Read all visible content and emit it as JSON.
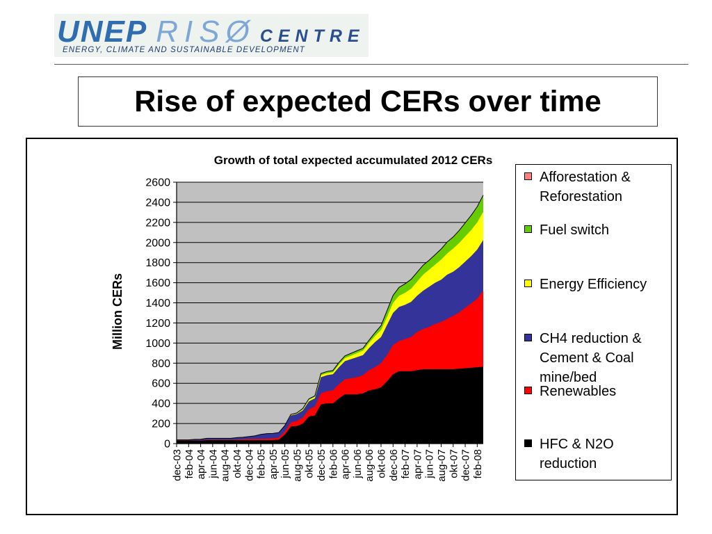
{
  "header": {
    "logo": {
      "word1": "UNEP",
      "word2": "RISØ",
      "word3": "CENTRE",
      "tagline": "ENERGY, CLIMATE AND SUSTAINABLE DEVELOPMENT"
    },
    "slide_title": "Rise of expected CERs over time"
  },
  "colors": {
    "plot_background": "#c0c0c0",
    "afforestation": "#ff8080",
    "fuel_switch": "#66cc00",
    "energy_efficiency": "#ffff00",
    "ch4": "#333399",
    "renewables": "#ff0000",
    "hfc": "#000000"
  },
  "chart_data": {
    "type": "area",
    "stacked": true,
    "title": "Growth of total expected accumulated 2012 CERs",
    "ylabel": "Million CERs",
    "xlabel": "",
    "ylim": [
      0,
      2600
    ],
    "yticks": [
      0,
      200,
      400,
      600,
      800,
      1000,
      1200,
      1400,
      1600,
      1800,
      2000,
      2200,
      2400,
      2600
    ],
    "grid": true,
    "legend_position": "right",
    "x_tick_labels": [
      "dec-03",
      "feb-04",
      "apr-04",
      "jun-04",
      "aug-04",
      "okt-04",
      "dec-04",
      "feb-05",
      "apr-05",
      "jun-05",
      "aug-05",
      "okt-05",
      "dec-05",
      "feb-06",
      "apr-06",
      "jun-06",
      "aug-06",
      "okt-06",
      "dec-06",
      "feb-07",
      "apr-07",
      "jun-07",
      "aug-07",
      "okt-07",
      "dec-07",
      "feb-08"
    ],
    "x": [
      "dec-03",
      "jan-04",
      "feb-04",
      "mar-04",
      "apr-04",
      "maj-04",
      "jun-04",
      "jul-04",
      "aug-04",
      "sep-04",
      "okt-04",
      "nov-04",
      "dec-04",
      "jan-05",
      "feb-05",
      "mar-05",
      "apr-05",
      "maj-05",
      "jun-05",
      "jul-05",
      "aug-05",
      "sep-05",
      "okt-05",
      "nov-05",
      "dec-05",
      "jan-06",
      "feb-06",
      "mar-06",
      "apr-06",
      "maj-06",
      "jun-06",
      "jul-06",
      "aug-06",
      "sep-06",
      "okt-06",
      "nov-06",
      "dec-06",
      "jan-07",
      "feb-07",
      "mar-07",
      "apr-07",
      "maj-07",
      "jun-07",
      "jul-07",
      "aug-07",
      "sep-07",
      "okt-07",
      "nov-07",
      "dec-07",
      "jan-08",
      "feb-08",
      "mar-08"
    ],
    "series": [
      {
        "name": "HFC & N2O reduction",
        "values": [
          30,
          30,
          30,
          30,
          30,
          35,
          35,
          35,
          35,
          35,
          35,
          35,
          35,
          35,
          35,
          35,
          35,
          40,
          90,
          170,
          175,
          200,
          270,
          280,
          390,
          400,
          400,
          450,
          490,
          490,
          490,
          500,
          530,
          540,
          560,
          620,
          690,
          720,
          720,
          720,
          730,
          740,
          740,
          740,
          740,
          740,
          740,
          745,
          750,
          755,
          760,
          765
        ]
      },
      {
        "name": "Renewables",
        "values": [
          2,
          2,
          2,
          2,
          3,
          3,
          3,
          3,
          3,
          3,
          5,
          8,
          10,
          12,
          12,
          14,
          16,
          20,
          30,
          40,
          50,
          60,
          70,
          90,
          110,
          120,
          130,
          140,
          150,
          160,
          170,
          180,
          200,
          220,
          240,
          260,
          290,
          300,
          320,
          340,
          380,
          400,
          420,
          450,
          470,
          500,
          530,
          560,
          600,
          640,
          680,
          760
        ]
      },
      {
        "name": "CH4 reduction & Cement & Coal mine/bed",
        "values": [
          5,
          5,
          5,
          10,
          10,
          15,
          15,
          15,
          15,
          15,
          20,
          20,
          25,
          30,
          45,
          50,
          50,
          50,
          60,
          70,
          70,
          70,
          80,
          80,
          160,
          160,
          160,
          170,
          180,
          190,
          200,
          200,
          220,
          250,
          260,
          300,
          320,
          340,
          340,
          350,
          360,
          380,
          400,
          410,
          420,
          440,
          440,
          450,
          460,
          470,
          490,
          500
        ]
      },
      {
        "name": "Energy Efficiency",
        "values": [
          0,
          0,
          0,
          0,
          0,
          0,
          0,
          0,
          0,
          0,
          0,
          0,
          0,
          0,
          0,
          0,
          0,
          0,
          0,
          5,
          5,
          10,
          15,
          15,
          20,
          20,
          20,
          25,
          30,
          35,
          40,
          45,
          50,
          60,
          70,
          80,
          100,
          110,
          120,
          130,
          140,
          160,
          170,
          180,
          200,
          210,
          230,
          240,
          250,
          260,
          270,
          280
        ]
      },
      {
        "name": "Fuel switch",
        "values": [
          0,
          0,
          0,
          0,
          0,
          0,
          0,
          0,
          0,
          0,
          0,
          0,
          0,
          0,
          0,
          0,
          0,
          0,
          0,
          5,
          5,
          10,
          10,
          10,
          15,
          15,
          15,
          20,
          20,
          20,
          20,
          20,
          25,
          30,
          40,
          60,
          70,
          80,
          85,
          90,
          90,
          90,
          90,
          95,
          100,
          110,
          110,
          120,
          130,
          140,
          150,
          160
        ]
      },
      {
        "name": "Afforestation & Reforestation",
        "values": [
          0,
          0,
          0,
          0,
          0,
          0,
          0,
          0,
          0,
          0,
          0,
          0,
          0,
          0,
          0,
          0,
          0,
          0,
          0,
          0,
          0,
          0,
          0,
          0,
          2,
          2,
          2,
          2,
          3,
          3,
          3,
          3,
          3,
          3,
          3,
          3,
          4,
          4,
          4,
          4,
          4,
          4,
          4,
          4,
          5,
          5,
          5,
          5,
          5,
          5,
          6,
          6
        ]
      }
    ]
  },
  "legend": [
    {
      "label_lines": [
        "Afforestation &",
        "Reforestation"
      ],
      "color": "#ff8080"
    },
    {
      "label_lines": [
        "Fuel switch"
      ],
      "color": "#66cc00"
    },
    {
      "label_lines": [
        "Energy Efficiency"
      ],
      "color": "#ffff00"
    },
    {
      "label_lines": [
        "CH4 reduction &",
        "Cement & Coal",
        "mine/bed"
      ],
      "color": "#333399"
    },
    {
      "label_lines": [
        "Renewables"
      ],
      "color": "#ff0000"
    },
    {
      "label_lines": [
        "HFC & N2O",
        "reduction"
      ],
      "color": "#000000"
    }
  ]
}
